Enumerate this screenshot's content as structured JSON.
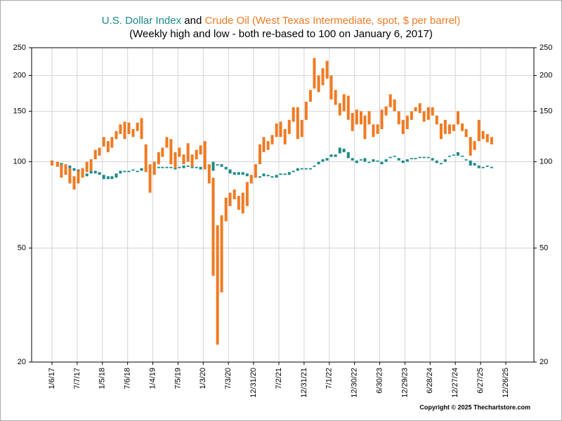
{
  "chart_data": {
    "type": "highlow",
    "title_connector": "and",
    "subtitle": "(Weekly high and low - both re-based to 100 on January 6, 2017)",
    "copyright": "Copyright © 2025 Thechartstore.com",
    "log_scale": true,
    "grid": true,
    "xlim": [
      "8/12/16",
      "7/17/26"
    ],
    "xticks": [
      "1/6/17",
      "7/7/17",
      "1/5/18",
      "7/6/18",
      "1/4/19",
      "7/5/19",
      "1/3/20",
      "7/3/20",
      "12/31/20",
      "7/2/21",
      "12/31/21",
      "7/1/22",
      "12/30/22",
      "6/30/23",
      "12/29/23",
      "6/28/24",
      "12/27/24",
      "6/27/25",
      "12/26/25"
    ],
    "ylim": [
      20,
      250
    ],
    "yticks": [
      20,
      50,
      100,
      150,
      200,
      250
    ],
    "x": [
      "1/6/17",
      "2/15/17",
      "3/15/17",
      "4/15/17",
      "5/15/17",
      "6/15/17",
      "7/15/17",
      "8/15/17",
      "9/15/17",
      "10/15/17",
      "11/15/17",
      "12/15/17",
      "1/15/18",
      "2/15/18",
      "3/15/18",
      "4/15/18",
      "5/15/18",
      "6/15/18",
      "7/15/18",
      "8/15/18",
      "9/15/18",
      "10/15/18",
      "11/15/18",
      "12/15/18",
      "1/15/19",
      "2/15/19",
      "3/15/19",
      "4/15/19",
      "5/15/19",
      "6/15/19",
      "7/15/19",
      "8/15/19",
      "9/15/19",
      "10/15/19",
      "11/15/19",
      "12/15/19",
      "1/15/20",
      "2/15/20",
      "3/15/20",
      "4/15/20",
      "5/15/20",
      "6/15/20",
      "7/15/20",
      "8/15/20",
      "9/15/20",
      "10/15/20",
      "11/15/20",
      "12/15/20",
      "1/15/21",
      "2/15/21",
      "3/15/21",
      "4/15/21",
      "5/15/21",
      "6/15/21",
      "7/15/21",
      "8/15/21",
      "9/15/21",
      "10/15/21",
      "11/15/21",
      "12/15/21",
      "1/15/22",
      "2/15/22",
      "3/15/22",
      "4/15/22",
      "5/15/22",
      "6/15/22",
      "7/15/22",
      "8/15/22",
      "9/15/22",
      "10/15/22",
      "11/15/22",
      "12/15/22",
      "1/15/23",
      "2/15/23",
      "3/15/23",
      "4/15/23",
      "5/15/23",
      "6/15/23",
      "7/15/23",
      "8/15/23",
      "9/15/23",
      "10/15/23",
      "11/15/23",
      "12/15/23",
      "1/15/24",
      "2/15/24",
      "3/15/24",
      "4/15/24",
      "5/15/24",
      "6/15/24",
      "7/15/24",
      "8/15/24",
      "9/15/24",
      "10/15/24",
      "11/15/24",
      "12/15/24",
      "1/15/25",
      "2/15/25",
      "3/15/25",
      "4/15/25",
      "5/15/25",
      "6/15/25",
      "7/15/25",
      "8/15/25",
      "9/15/25"
    ],
    "series": [
      {
        "name": "U.S. Dollar Index",
        "color": "#1b8a8a",
        "high": [
          101,
          100,
          99,
          98,
          97,
          95,
          94,
          92,
          91,
          93,
          93,
          92,
          90,
          89,
          89,
          91,
          93,
          93,
          93,
          94,
          93,
          95,
          95,
          95,
          96,
          96,
          96,
          96,
          96,
          96,
          96,
          97,
          97,
          96,
          96,
          96,
          96,
          97,
          100,
          98,
          98,
          96,
          94,
          92,
          92,
          92,
          91,
          89,
          89,
          89,
          91,
          90,
          89,
          90,
          91,
          91,
          92,
          93,
          95,
          95,
          95,
          95,
          97,
          100,
          102,
          103,
          106,
          106,
          112,
          111,
          108,
          103,
          101,
          102,
          103,
          100,
          102,
          101,
          100,
          102,
          104,
          105,
          103,
          101,
          102,
          103,
          103,
          104,
          104,
          104,
          103,
          101,
          99,
          102,
          105,
          106,
          108,
          105,
          102,
          101,
          99,
          97,
          96,
          97,
          96
        ],
        "low": [
          98,
          98,
          96,
          96,
          95,
          93,
          91,
          90,
          89,
          91,
          91,
          90,
          87,
          87,
          87,
          88,
          91,
          92,
          92,
          93,
          92,
          93,
          94,
          94,
          94,
          95,
          95,
          95,
          95,
          94,
          95,
          95,
          96,
          95,
          95,
          94,
          95,
          95,
          93,
          97,
          96,
          94,
          91,
          90,
          90,
          90,
          89,
          88,
          88,
          88,
          89,
          89,
          88,
          88,
          90,
          90,
          90,
          92,
          93,
          94,
          94,
          94,
          96,
          98,
          100,
          101,
          104,
          104,
          107,
          108,
          103,
          101,
          99,
          101,
          100,
          99,
          100,
          100,
          98,
          100,
          103,
          104,
          101,
          99,
          100,
          102,
          102,
          103,
          103,
          103,
          101,
          99,
          98,
          100,
          104,
          105,
          105,
          104,
          101,
          97,
          97,
          95,
          95,
          96,
          95
        ]
      },
      {
        "name": "Crude Oil (West Texas Intermediate, spot, $ per barrel)",
        "color": "#f07a22",
        "high": [
          101,
          100,
          98,
          98,
          95,
          89,
          93,
          95,
          100,
          102,
          110,
          112,
          122,
          118,
          122,
          128,
          135,
          138,
          137,
          130,
          137,
          142,
          115,
          98,
          100,
          108,
          112,
          122,
          120,
          108,
          112,
          106,
          116,
          106,
          110,
          114,
          118,
          98,
          88,
          60,
          65,
          75,
          78,
          80,
          76,
          78,
          85,
          90,
          98,
          115,
          122,
          118,
          124,
          136,
          138,
          130,
          140,
          155,
          155,
          140,
          162,
          178,
          230,
          200,
          212,
          225,
          200,
          178,
          160,
          172,
          170,
          148,
          152,
          150,
          145,
          150,
          135,
          135,
          152,
          156,
          172,
          165,
          150,
          140,
          145,
          150,
          155,
          160,
          150,
          155,
          155,
          145,
          136,
          140,
          135,
          135,
          150,
          136,
          130,
          122,
          118,
          140,
          128,
          125,
          122
        ],
        "low": [
          97,
          96,
          88,
          90,
          84,
          80,
          84,
          88,
          92,
          93,
          102,
          105,
          113,
          108,
          112,
          120,
          125,
          120,
          125,
          122,
          128,
          120,
          92,
          78,
          90,
          98,
          104,
          112,
          98,
          95,
          104,
          98,
          100,
          96,
          102,
          106,
          94,
          84,
          40,
          23,
          35,
          62,
          70,
          74,
          68,
          66,
          70,
          84,
          88,
          98,
          108,
          110,
          115,
          122,
          122,
          115,
          125,
          138,
          120,
          122,
          140,
          162,
          180,
          175,
          185,
          195,
          165,
          158,
          145,
          150,
          140,
          128,
          135,
          135,
          120,
          135,
          122,
          125,
          130,
          145,
          155,
          150,
          135,
          125,
          130,
          140,
          150,
          148,
          138,
          140,
          145,
          135,
          120,
          125,
          125,
          128,
          135,
          128,
          122,
          105,
          110,
          118,
          120,
          117,
          115
        ]
      }
    ]
  }
}
